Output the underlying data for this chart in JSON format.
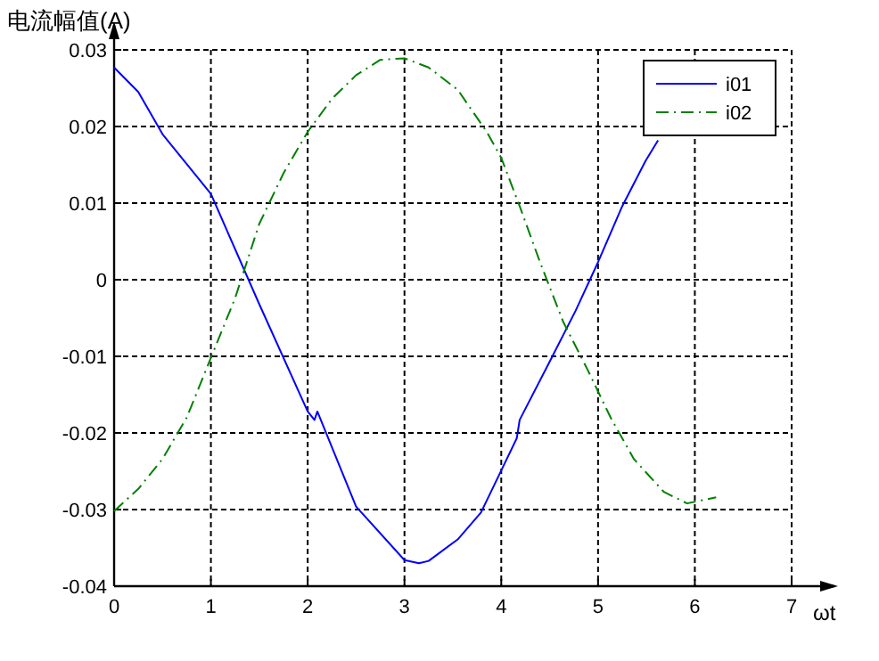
{
  "chart_data": {
    "type": "line",
    "ylabel": "电流幅值(A)",
    "xlabel": "ωt",
    "xlim": [
      0,
      7
    ],
    "xticks": [
      0,
      1,
      2,
      3,
      4,
      5,
      6,
      7
    ],
    "ylim": [
      -0.04,
      0.03
    ],
    "yticks": [
      -0.04,
      -0.03,
      -0.02,
      -0.01,
      0,
      0.01,
      0.02,
      0.03
    ],
    "grid": true,
    "legend": "top right",
    "series": [
      {
        "name": "i01",
        "color": "#0000ff",
        "line_style": "solid",
        "x": [
          0,
          0.25,
          0.5,
          1,
          1.5,
          2,
          2.07,
          2.1,
          2.5,
          3,
          3.15,
          3.25,
          3.55,
          3.79,
          4.0,
          4.16,
          4.19,
          4.52,
          4.77,
          5.0,
          5.25,
          5.49,
          5.62
        ],
        "values": [
          0.0277,
          0.0245,
          0.019,
          0.0112,
          -0.0032,
          -0.0172,
          -0.0183,
          -0.0172,
          -0.0296,
          -0.0366,
          -0.037,
          -0.0367,
          -0.0339,
          -0.0304,
          -0.0249,
          -0.0207,
          -0.0183,
          -0.0102,
          -0.004,
          0.0023,
          0.0096,
          0.0155,
          0.0182
        ]
      },
      {
        "name": "i02",
        "color": "#008000",
        "line_style": "dashdot",
        "x": [
          0,
          0.25,
          0.5,
          0.75,
          1,
          1.25,
          1.5,
          1.75,
          2,
          2.25,
          2.5,
          2.75,
          3,
          3.25,
          3.55,
          3.85,
          4,
          4.19,
          4.4,
          4.64,
          4.89,
          5.13,
          5.37,
          5.68,
          5.92,
          6.22
        ],
        "values": [
          -0.0302,
          -0.0273,
          -0.0234,
          -0.018,
          -0.0102,
          -0.0024,
          0.0073,
          0.0139,
          0.0193,
          0.0236,
          0.0267,
          0.0287,
          0.0289,
          0.0277,
          0.0248,
          0.0193,
          0.0159,
          0.0096,
          0.0023,
          -0.0055,
          -0.0117,
          -0.018,
          -0.0234,
          -0.0277,
          -0.0292,
          -0.0284
        ]
      }
    ]
  }
}
